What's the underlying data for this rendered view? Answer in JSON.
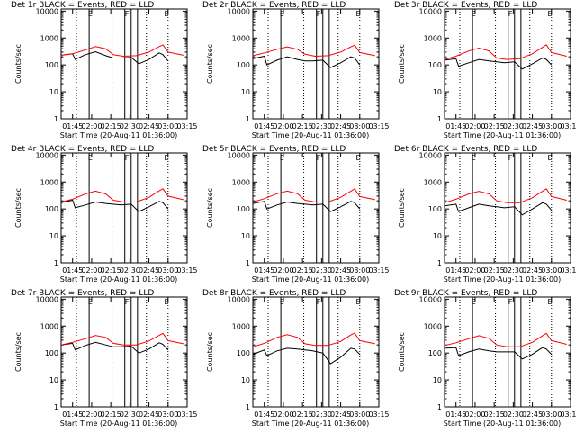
{
  "figure": {
    "xlabel": "Start Time (20-Aug-11 01:36:00)",
    "ylabel": "Counts/sec",
    "x_tick_labels": [
      "01:45",
      "02:00",
      "02:15",
      "02:30",
      "02:45",
      "03:00",
      "03:15"
    ],
    "y_tick_labels": [
      "1",
      "10",
      "100",
      "1000",
      "10000"
    ],
    "colors": {
      "events": "#000000",
      "lld": "#ff0000",
      "axes": "#000000",
      "background": "#ffffff"
    }
  },
  "chart_data": [
    {
      "type": "line",
      "title": "Det 1r BLACK = Events, RED = LLD",
      "xlabel": "Start Time (20-Aug-11 01:36:00)",
      "ylabel": "Counts/sec",
      "yscale": "log",
      "xlim": [
        "01:36",
        "03:15"
      ],
      "ylim": [
        1,
        12000
      ],
      "x_tick_labels": [
        "01:45",
        "02:00",
        "02:15",
        "02:30",
        "02:45",
        "03:00",
        "03:15"
      ],
      "y_tick_labels": [
        "1",
        "10",
        "100",
        "1000",
        "10000"
      ],
      "marker_labels": [
        "E",
        "F",
        "E"
      ],
      "series": [
        {
          "name": "Events",
          "color": "#000000",
          "x": [
            "01:36",
            "01:45",
            "01:47",
            "01:55",
            "02:03",
            "02:11",
            "02:17",
            "02:23",
            "02:31",
            "02:37",
            "02:45",
            "02:53",
            "02:56",
            "03:00"
          ],
          "y": [
            230,
            260,
            160,
            240,
            310,
            220,
            180,
            180,
            190,
            110,
            160,
            280,
            240,
            140
          ]
        },
        {
          "name": "LLD",
          "color": "#ff0000",
          "x": [
            "01:36",
            "01:45",
            "01:55",
            "02:03",
            "02:11",
            "02:17",
            "02:25",
            "02:35",
            "02:45",
            "02:53",
            "02:56",
            "03:00",
            "03:12"
          ],
          "y": [
            230,
            260,
            360,
            480,
            400,
            240,
            210,
            220,
            300,
            480,
            550,
            300,
            230
          ]
        }
      ]
    },
    {
      "type": "line",
      "title": "Det 2r BLACK = Events, RED = LLD",
      "xlabel": "Start Time (20-Aug-11 01:36:00)",
      "ylabel": "Counts/sec",
      "yscale": "log",
      "xlim": [
        "01:36",
        "03:15"
      ],
      "ylim": [
        1,
        12000
      ],
      "x_tick_labels": [
        "01:45",
        "02:00",
        "02:15",
        "02:30",
        "02:45",
        "03:00",
        "03:15"
      ],
      "y_tick_labels": [
        "1",
        "10",
        "100",
        "1000",
        "10000"
      ],
      "marker_labels": [
        "E",
        "F",
        "E"
      ],
      "series": [
        {
          "name": "Events",
          "color": "#000000",
          "x": [
            "01:36",
            "01:45",
            "01:47",
            "01:55",
            "02:03",
            "02:11",
            "02:17",
            "02:23",
            "02:31",
            "02:37",
            "02:45",
            "02:53",
            "02:56",
            "03:00"
          ],
          "y": [
            170,
            210,
            100,
            150,
            200,
            160,
            140,
            140,
            150,
            80,
            120,
            200,
            180,
            100
          ]
        },
        {
          "name": "LLD",
          "color": "#ff0000",
          "x": [
            "01:36",
            "01:45",
            "01:55",
            "02:03",
            "02:11",
            "02:17",
            "02:25",
            "02:35",
            "02:45",
            "02:53",
            "02:56",
            "03:00",
            "03:12"
          ],
          "y": [
            220,
            280,
            380,
            470,
            380,
            250,
            210,
            220,
            300,
            470,
            540,
            290,
            220
          ]
        }
      ]
    },
    {
      "type": "line",
      "title": "Det 3r BLACK = Events, RED = LLD",
      "xlabel": "Start Time (20-Aug-11 01:36:00)",
      "ylabel": "Counts/sec",
      "yscale": "log",
      "xlim": [
        "01:36",
        "03:15"
      ],
      "ylim": [
        1,
        12000
      ],
      "x_tick_labels": [
        "01:45",
        "02:00",
        "02:15",
        "02:30",
        "02:45",
        "03:00",
        "03:15"
      ],
      "y_tick_labels": [
        "1",
        "10",
        "100",
        "1000",
        "10000"
      ],
      "marker_labels": [
        "E",
        "F",
        "E"
      ],
      "series": [
        {
          "name": "Events",
          "color": "#000000",
          "x": [
            "01:36",
            "01:45",
            "01:47",
            "01:55",
            "02:03",
            "02:11",
            "02:17",
            "02:23",
            "02:31",
            "02:37",
            "02:45",
            "02:53",
            "02:56",
            "03:00"
          ],
          "y": [
            150,
            170,
            90,
            120,
            160,
            140,
            130,
            120,
            130,
            70,
            110,
            180,
            160,
            100
          ]
        },
        {
          "name": "LLD",
          "color": "#ff0000",
          "x": [
            "01:36",
            "01:45",
            "01:55",
            "02:03",
            "02:11",
            "02:17",
            "02:25",
            "02:35",
            "02:45",
            "02:53",
            "02:56",
            "03:00",
            "03:12"
          ],
          "y": [
            160,
            210,
            330,
            420,
            330,
            180,
            160,
            170,
            260,
            450,
            560,
            290,
            210
          ]
        }
      ]
    },
    {
      "type": "line",
      "title": "Det 4r BLACK = Events, RED = LLD",
      "xlabel": "Start Time (20-Aug-11 01:36:00)",
      "ylabel": "Counts/sec",
      "yscale": "log",
      "xlim": [
        "01:36",
        "03:15"
      ],
      "ylim": [
        1,
        12000
      ],
      "x_tick_labels": [
        "01:45",
        "02:00",
        "02:15",
        "02:30",
        "02:45",
        "03:00",
        "03:15"
      ],
      "y_tick_labels": [
        "1",
        "10",
        "100",
        "1000",
        "10000"
      ],
      "marker_labels": [
        "E",
        "F",
        "E"
      ],
      "series": [
        {
          "name": "Events",
          "color": "#000000",
          "x": [
            "01:36",
            "01:45",
            "01:47",
            "01:55",
            "02:03",
            "02:11",
            "02:17",
            "02:23",
            "02:31",
            "02:37",
            "02:45",
            "02:53",
            "02:56",
            "03:00"
          ],
          "y": [
            170,
            210,
            110,
            140,
            180,
            160,
            150,
            140,
            150,
            80,
            120,
            190,
            170,
            100
          ]
        },
        {
          "name": "LLD",
          "color": "#ff0000",
          "x": [
            "01:36",
            "01:45",
            "01:55",
            "02:03",
            "02:11",
            "02:17",
            "02:25",
            "02:35",
            "02:45",
            "02:53",
            "02:56",
            "03:00",
            "03:12"
          ],
          "y": [
            180,
            230,
            360,
            460,
            360,
            210,
            180,
            180,
            270,
            470,
            560,
            300,
            220
          ]
        }
      ]
    },
    {
      "type": "line",
      "title": "Det 5r BLACK = Events, RED = LLD",
      "xlabel": "Start Time (20-Aug-11 01:36:00)",
      "ylabel": "Counts/sec",
      "yscale": "log",
      "xlim": [
        "01:36",
        "03:15"
      ],
      "ylim": [
        1,
        12000
      ],
      "x_tick_labels": [
        "01:45",
        "02:00",
        "02:15",
        "02:30",
        "02:45",
        "03:00",
        "03:15"
      ],
      "y_tick_labels": [
        "1",
        "10",
        "100",
        "1000",
        "10000"
      ],
      "marker_labels": [
        "E",
        "F",
        "E"
      ],
      "series": [
        {
          "name": "Events",
          "color": "#000000",
          "x": [
            "01:36",
            "01:45",
            "01:47",
            "01:55",
            "02:03",
            "02:11",
            "02:17",
            "02:23",
            "02:31",
            "02:37",
            "02:45",
            "02:53",
            "02:56",
            "03:00"
          ],
          "y": [
            160,
            190,
            100,
            140,
            180,
            160,
            150,
            140,
            150,
            80,
            120,
            190,
            170,
            100
          ]
        },
        {
          "name": "LLD",
          "color": "#ff0000",
          "x": [
            "01:36",
            "01:45",
            "01:55",
            "02:03",
            "02:11",
            "02:17",
            "02:25",
            "02:35",
            "02:45",
            "02:53",
            "02:56",
            "03:00",
            "03:12"
          ],
          "y": [
            180,
            240,
            370,
            460,
            370,
            210,
            180,
            180,
            270,
            460,
            560,
            290,
            220
          ]
        }
      ]
    },
    {
      "type": "line",
      "title": "Det 6r BLACK = Events, RED = LLD",
      "xlabel": "Start Time (20-Aug-11 01:36:00)",
      "ylabel": "Counts/sec",
      "yscale": "log",
      "xlim": [
        "01:36",
        "03:15"
      ],
      "ylim": [
        1,
        12000
      ],
      "x_tick_labels": [
        "01:45",
        "02:00",
        "02:15",
        "02:30",
        "02:45",
        "03:00",
        "03:15"
      ],
      "y_tick_labels": [
        "1",
        "10",
        "100",
        "1000",
        "10000"
      ],
      "marker_labels": [
        "E",
        "F",
        "E"
      ],
      "series": [
        {
          "name": "Events",
          "color": "#000000",
          "x": [
            "01:36",
            "01:45",
            "01:47",
            "01:55",
            "02:03",
            "02:11",
            "02:17",
            "02:23",
            "02:31",
            "02:37",
            "02:45",
            "02:53",
            "02:56",
            "03:00"
          ],
          "y": [
            130,
            150,
            80,
            110,
            150,
            130,
            120,
            110,
            120,
            60,
            100,
            170,
            150,
            90
          ]
        },
        {
          "name": "LLD",
          "color": "#ff0000",
          "x": [
            "01:36",
            "01:45",
            "01:55",
            "02:03",
            "02:11",
            "02:17",
            "02:25",
            "02:35",
            "02:45",
            "02:53",
            "02:56",
            "03:00",
            "03:12"
          ],
          "y": [
            170,
            230,
            360,
            450,
            360,
            200,
            170,
            170,
            260,
            460,
            560,
            290,
            210
          ]
        }
      ]
    },
    {
      "type": "line",
      "title": "Det 7r BLACK = Events, RED = LLD",
      "xlabel": "Start Time (20-Aug-11 01:36:00)",
      "ylabel": "Counts/sec",
      "yscale": "log",
      "xlim": [
        "01:36",
        "03:15"
      ],
      "ylim": [
        1,
        12000
      ],
      "x_tick_labels": [
        "01:45",
        "02:00",
        "02:15",
        "02:30",
        "02:45",
        "03:00",
        "03:15"
      ],
      "y_tick_labels": [
        "1",
        "10",
        "100",
        "1000",
        "10000"
      ],
      "marker_labels": [
        "E",
        "F",
        "E"
      ],
      "series": [
        {
          "name": "Events",
          "color": "#000000",
          "x": [
            "01:36",
            "01:45",
            "01:47",
            "01:55",
            "02:03",
            "02:11",
            "02:17",
            "02:23",
            "02:31",
            "02:37",
            "02:45",
            "02:53",
            "02:56",
            "03:00"
          ],
          "y": [
            200,
            230,
            130,
            190,
            250,
            200,
            170,
            170,
            180,
            100,
            140,
            240,
            210,
            130
          ]
        },
        {
          "name": "LLD",
          "color": "#ff0000",
          "x": [
            "01:36",
            "01:45",
            "01:55",
            "02:03",
            "02:11",
            "02:17",
            "02:25",
            "02:35",
            "02:45",
            "02:53",
            "02:56",
            "03:00",
            "03:12"
          ],
          "y": [
            200,
            250,
            340,
            450,
            380,
            230,
            200,
            200,
            280,
            450,
            540,
            290,
            220
          ]
        }
      ]
    },
    {
      "type": "line",
      "title": "Det 8r BLACK = Events, RED = LLD",
      "xlabel": "Start Time (20-Aug-11 01:36:00)",
      "ylabel": "Counts/sec",
      "yscale": "log",
      "xlim": [
        "01:36",
        "03:15"
      ],
      "ylim": [
        1,
        12000
      ],
      "x_tick_labels": [
        "01:45",
        "02:00",
        "02:15",
        "02:30",
        "02:45",
        "03:00",
        "03:15"
      ],
      "y_tick_labels": [
        "1",
        "10",
        "100",
        "1000",
        "10000"
      ],
      "marker_labels": [
        "E",
        "F",
        "E"
      ],
      "series": [
        {
          "name": "Events",
          "color": "#000000",
          "x": [
            "01:36",
            "01:45",
            "01:47",
            "01:55",
            "02:03",
            "02:11",
            "02:17",
            "02:23",
            "02:31",
            "02:37",
            "02:45",
            "02:53",
            "02:56",
            "03:00"
          ],
          "y": [
            90,
            130,
            80,
            120,
            150,
            140,
            130,
            120,
            100,
            40,
            70,
            150,
            140,
            90
          ]
        },
        {
          "name": "LLD",
          "color": "#ff0000",
          "x": [
            "01:36",
            "01:45",
            "01:55",
            "02:03",
            "02:11",
            "02:17",
            "02:25",
            "02:35",
            "02:45",
            "02:53",
            "02:56",
            "03:00",
            "03:12"
          ],
          "y": [
            170,
            230,
            380,
            480,
            380,
            220,
            190,
            190,
            270,
            470,
            550,
            290,
            220
          ]
        }
      ]
    },
    {
      "type": "line",
      "title": "Det 9r BLACK = Events, RED = LLD",
      "xlabel": "Start Time (20-Aug-11 01:36:00)",
      "ylabel": "Counts/sec",
      "yscale": "log",
      "xlim": [
        "01:36",
        "03:15"
      ],
      "ylim": [
        1,
        12000
      ],
      "x_tick_labels": [
        "01:45",
        "02:00",
        "02:15",
        "02:30",
        "02:45",
        "03:00",
        "03:15"
      ],
      "y_tick_labels": [
        "1",
        "10",
        "100",
        "1000",
        "10000"
      ],
      "marker_labels": [
        "E",
        "F",
        "E"
      ],
      "series": [
        {
          "name": "Events",
          "color": "#000000",
          "x": [
            "01:36",
            "01:45",
            "01:47",
            "01:55",
            "02:03",
            "02:11",
            "02:17",
            "02:23",
            "02:31",
            "02:37",
            "02:45",
            "02:53",
            "02:56",
            "03:00"
          ],
          "y": [
            150,
            160,
            80,
            110,
            140,
            120,
            110,
            110,
            110,
            60,
            90,
            160,
            140,
            90
          ]
        },
        {
          "name": "LLD",
          "color": "#ff0000",
          "x": [
            "01:36",
            "01:45",
            "01:55",
            "02:03",
            "02:11",
            "02:17",
            "02:25",
            "02:35",
            "02:45",
            "02:53",
            "02:56",
            "03:00",
            "03:12"
          ],
          "y": [
            190,
            240,
            340,
            440,
            350,
            200,
            170,
            170,
            250,
            440,
            540,
            290,
            210
          ]
        }
      ]
    }
  ]
}
